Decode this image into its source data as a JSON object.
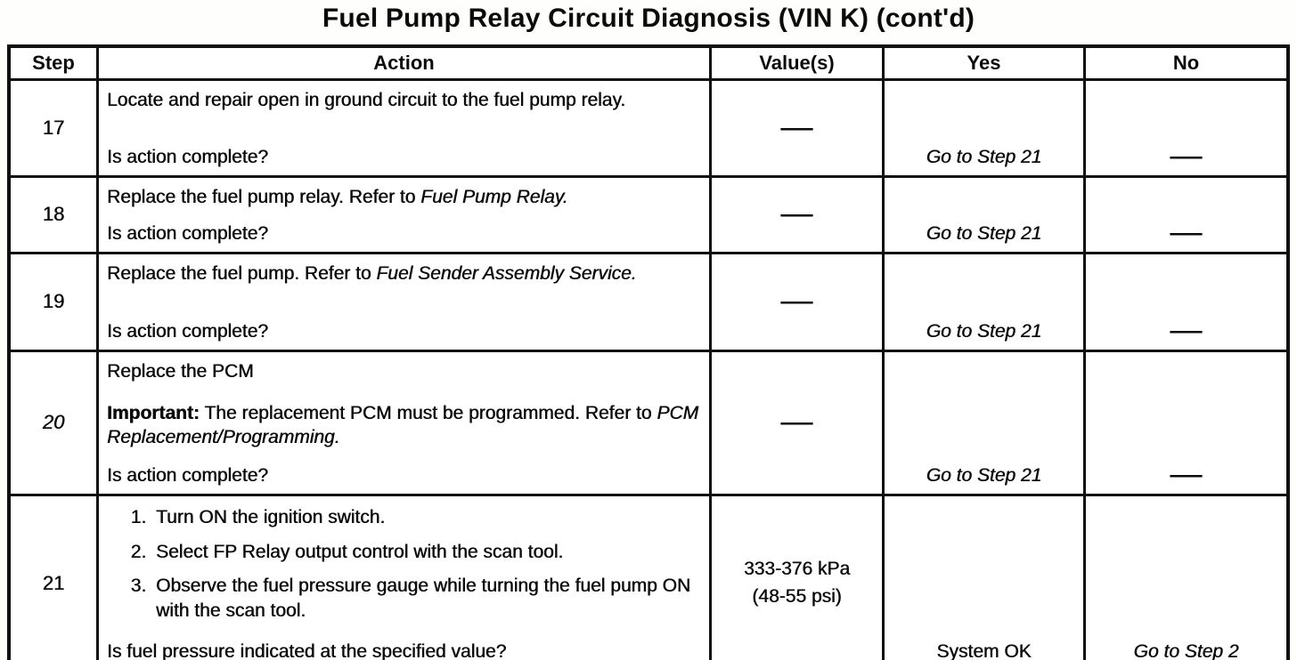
{
  "page": {
    "title": "Fuel Pump Relay Circuit Diagnosis (VIN K) (cont'd)"
  },
  "table": {
    "headers": {
      "step": "Step",
      "action": "Action",
      "values": "Value(s)",
      "yes": "Yes",
      "no": "No"
    },
    "rows": [
      {
        "step": "17",
        "action_text": "Locate and repair open in ground circuit to the fuel pump relay.",
        "question": "Is action complete?",
        "value": "—",
        "yes": "Go to Step 21",
        "no": "—"
      },
      {
        "step": "18",
        "action_text": "Replace the fuel pump relay. Refer to ",
        "action_ref": "Fuel Pump Relay.",
        "question": "Is action complete?",
        "value": "—",
        "yes": "Go to Step 21",
        "no": "—"
      },
      {
        "step": "19",
        "action_text": "Replace the fuel pump. Refer to ",
        "action_ref": "Fuel Sender Assembly Service.",
        "question": "Is action complete?",
        "value": "—",
        "yes": "Go to Step 21",
        "no": "—"
      },
      {
        "step": "20",
        "action_line1": "Replace the PCM",
        "important_label": "Important:",
        "important_text": " The replacement PCM must be programmed. Refer to ",
        "important_ref": "PCM Replacement/Programming.",
        "question": "Is action complete?",
        "value": "—",
        "yes": "Go to Step 21",
        "no": "—"
      },
      {
        "step": "21",
        "list": [
          "Turn ON the ignition switch.",
          "Select FP Relay output control with the scan tool.",
          "Observe the fuel pressure gauge while turning the fuel pump ON with the scan tool."
        ],
        "question": "Is fuel pressure indicated at the specified value?",
        "value_line1": "333-376 kPa",
        "value_line2": "(48-55 psi)",
        "yes": "System OK",
        "no": "Go to Step 2"
      }
    ]
  }
}
